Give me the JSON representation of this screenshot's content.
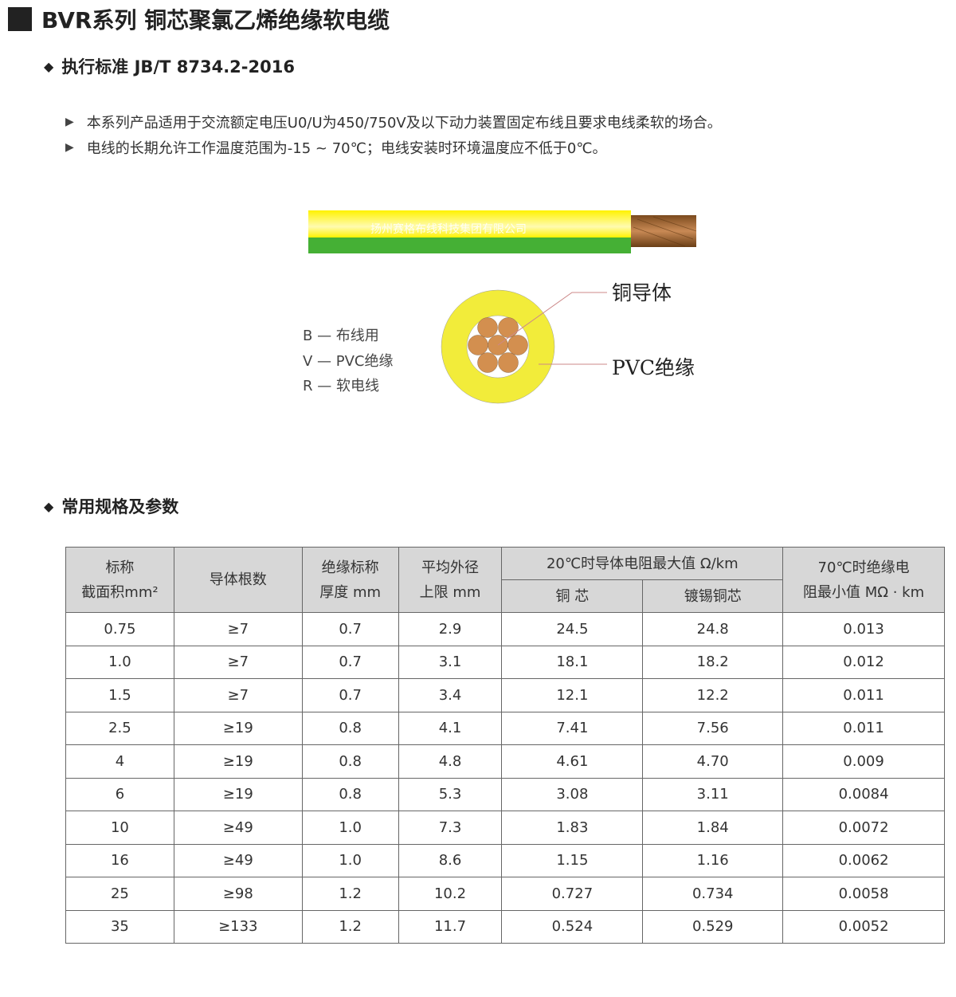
{
  "title": "BVR系列 铜芯聚氯乙烯绝缘软电缆",
  "standard_heading": "执行标准 JB/T 8734.2-2016",
  "bullets": [
    "本系列产品适用于交流额定电压U0/U为450/750V及以下动力装置固定布线且要求电线柔软的场合。",
    "电线的长期允许工作温度范围为-15 ~ 70℃；电线安装时环境温度应不低于0℃。"
  ],
  "cable_image": {
    "watermark": "扬州赛格布线科技集团有限公司",
    "colors": {
      "yellow": "#f2ec3a",
      "green": "#45b035",
      "copper": "#d38f4f"
    }
  },
  "legend": [
    "B — 布线用",
    "V — PVC绝缘",
    "R — 软电线"
  ],
  "labels": {
    "conductor": "铜导体",
    "insulation": "PVC绝缘"
  },
  "spec_heading": "常用规格及参数",
  "table": {
    "headers": {
      "area": [
        "标称",
        "截面积mm²"
      ],
      "strands": "导体根数",
      "thickness": [
        "绝缘标称",
        "厚度 mm"
      ],
      "diameter": [
        "平均外径",
        "上限 mm"
      ],
      "resistance": "20℃时导体电阻最大值 Ω/km",
      "copper": "铜 芯",
      "tinned": "镀锡铜芯",
      "insulation_res": [
        "70℃时绝缘电",
        "阻最小值 MΩ · km"
      ]
    },
    "rows": [
      [
        "0.75",
        "≥7",
        "0.7",
        "2.9",
        "24.5",
        "24.8",
        "0.013"
      ],
      [
        "1.0",
        "≥7",
        "0.7",
        "3.1",
        "18.1",
        "18.2",
        "0.012"
      ],
      [
        "1.5",
        "≥7",
        "0.7",
        "3.4",
        "12.1",
        "12.2",
        "0.011"
      ],
      [
        "2.5",
        "≥19",
        "0.8",
        "4.1",
        "7.41",
        "7.56",
        "0.011"
      ],
      [
        "4",
        "≥19",
        "0.8",
        "4.8",
        "4.61",
        "4.70",
        "0.009"
      ],
      [
        "6",
        "≥19",
        "0.8",
        "5.3",
        "3.08",
        "3.11",
        "0.0084"
      ],
      [
        "10",
        "≥49",
        "1.0",
        "7.3",
        "1.83",
        "1.84",
        "0.0072"
      ],
      [
        "16",
        "≥49",
        "1.0",
        "8.6",
        "1.15",
        "1.16",
        "0.0062"
      ],
      [
        "25",
        "≥98",
        "1.2",
        "10.2",
        "0.727",
        "0.734",
        "0.0058"
      ],
      [
        "35",
        "≥133",
        "1.2",
        "11.7",
        "0.524",
        "0.529",
        "0.0052"
      ]
    ]
  }
}
